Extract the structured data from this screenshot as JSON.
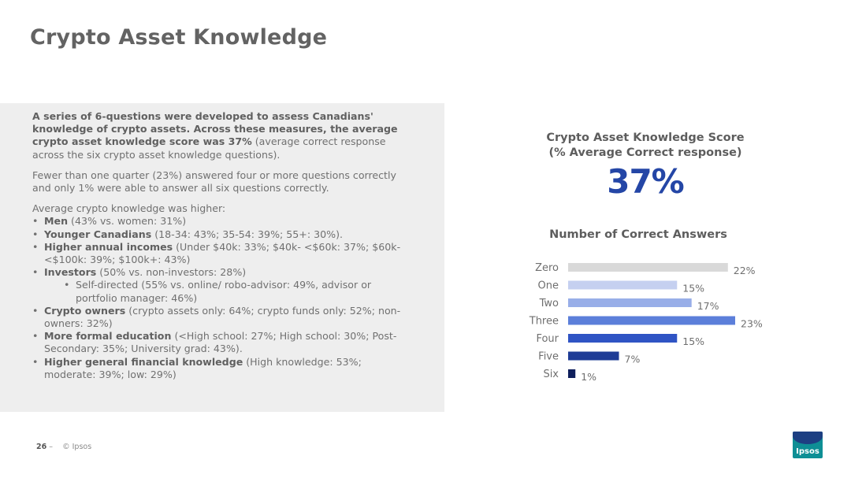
{
  "page": {
    "title": "Crypto Asset Knowledge"
  },
  "summary": {
    "para1_bold": "A series of 6-questions were developed to assess Canadians' knowledge of crypto assets.  Across these measures, the average crypto asset knowledge score was 37%",
    "para1_rest": " (average correct response across the six crypto asset knowledge questions).",
    "para2": "Fewer than one quarter (23%) answered four or more questions correctly and only 1% were able to answer all six questions correctly.",
    "para3_intro": "Average crypto knowledge was higher:",
    "bullets": [
      {
        "bold": "Men",
        "rest": " (43% vs. women: 31%)"
      },
      {
        "bold": "Younger Canadians",
        "rest": " (18-34: 43%; 35-54: 39%; 55+: 30%)."
      },
      {
        "bold": "Higher annual incomes",
        "rest": " (Under $40k: 33%; $40k- <$60k: 37%; $60k-<$100k: 39%; $100k+: 43%)"
      },
      {
        "bold": "Investors",
        "rest": " (50% vs. non-investors: 28%)"
      },
      {
        "sub": "Self-directed (55% vs. online/ robo-advisor: 49%, advisor or portfolio manager: 46%)"
      },
      {
        "bold": "Crypto owners",
        "rest": " (crypto assets only: 64%; crypto funds only: 52%; non-owners: 32%)"
      },
      {
        "bold": "More formal education",
        "rest": " (<High school: 27%; High school: 30%; Post-Secondary: 35%; University grad: 43%)."
      },
      {
        "bold": "Higher general financial knowledge",
        "rest": " (High knowledge: 53%; moderate: 39%; low: 29%)"
      }
    ]
  },
  "score": {
    "title_line1": "Crypto Asset Knowledge Score",
    "title_line2": "(% Average Correct response)",
    "value": "37%"
  },
  "chart_title": "Number of Correct Answers",
  "chart_data": {
    "type": "bar",
    "orientation": "horizontal",
    "categories": [
      "Zero",
      "One",
      "Two",
      "Three",
      "Four",
      "Five",
      "Six"
    ],
    "values": [
      22,
      15,
      17,
      23,
      15,
      7,
      1
    ],
    "data_labels": [
      "22%",
      "15%",
      "17%",
      "23%",
      "15%",
      "7%",
      "1%"
    ],
    "colors": [
      "#d9d9d9",
      "#c5d0f0",
      "#98aee8",
      "#5c7fda",
      "#2f54c4",
      "#1e3c96",
      "#0f1f5c"
    ],
    "title": "Number of Correct Answers",
    "xlim": [
      0,
      23
    ]
  },
  "footer": {
    "page_number": "26",
    "separator": "–",
    "copyright": "© Ipsos"
  },
  "logo": {
    "text": "Ipsos",
    "colors": {
      "top": "#1d3f82",
      "bottom": "#0e8f95"
    }
  }
}
